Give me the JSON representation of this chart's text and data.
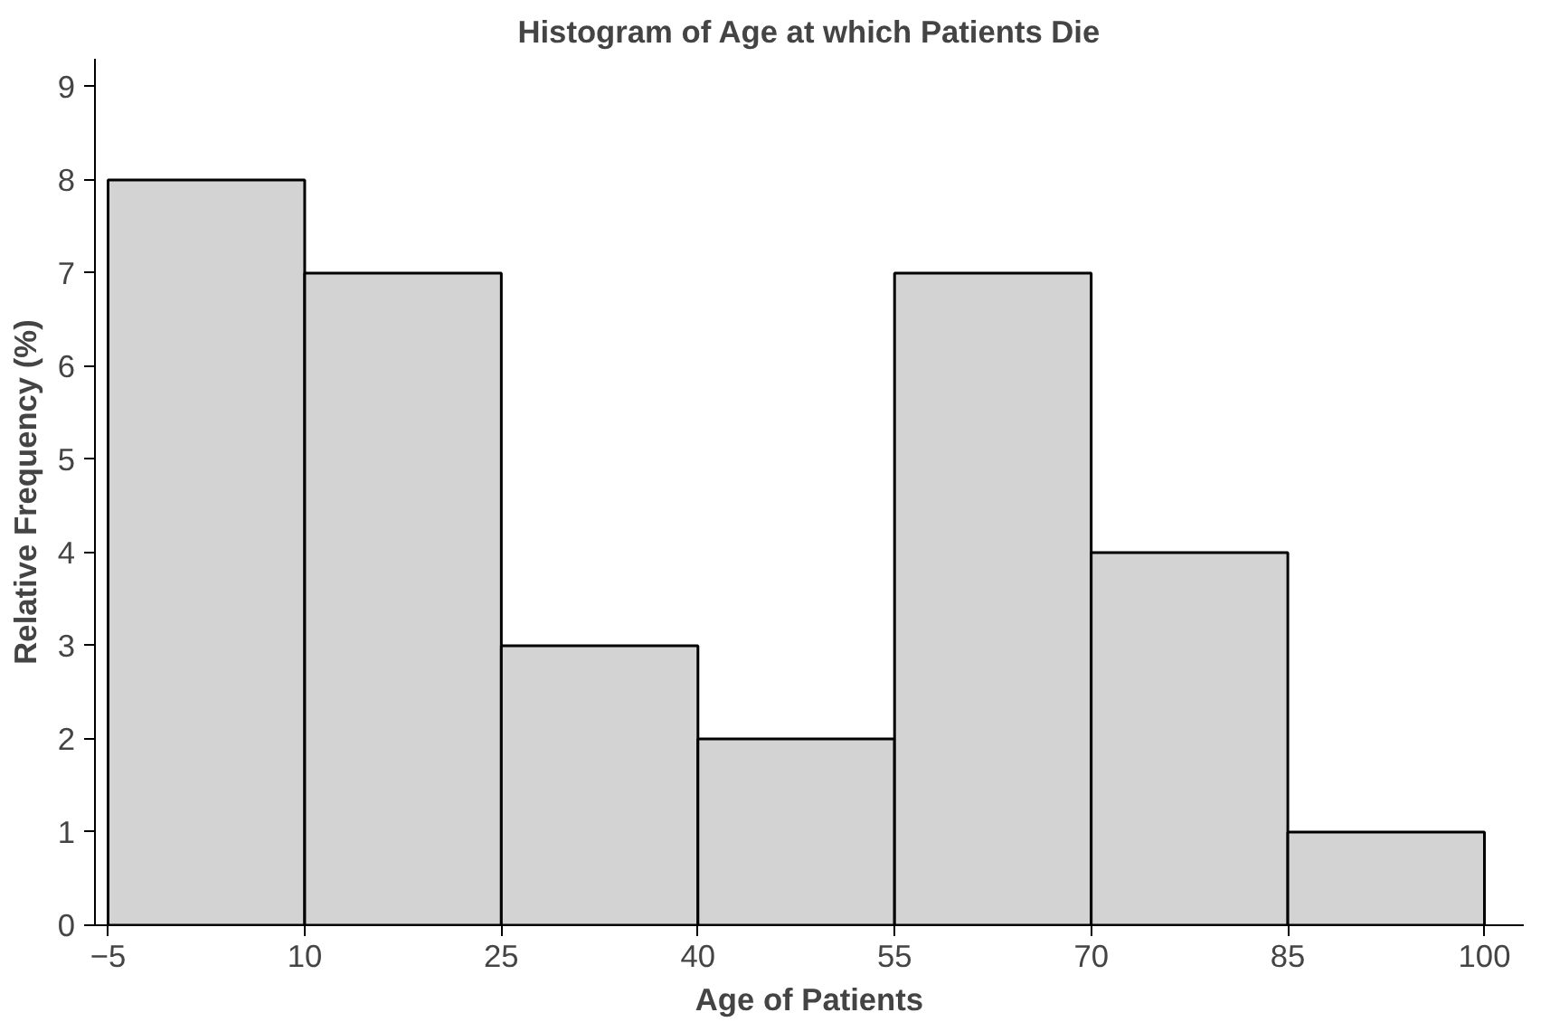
{
  "chart_data": {
    "type": "histogram",
    "title": "Histogram of Age at which Patients Die",
    "xlabel": "Age of Patients",
    "ylabel": "Relative Frequency (%)",
    "bins": [
      -5,
      10,
      25,
      40,
      55,
      70,
      85,
      100
    ],
    "values": [
      8,
      7,
      3,
      2,
      7,
      4,
      1
    ],
    "color": "#d3d3d3",
    "xlim": [
      -6,
      103
    ],
    "xticks": [
      {
        "value": -5,
        "label": "−5"
      },
      10,
      25,
      40,
      55,
      70,
      85,
      100
    ],
    "ylim": [
      0,
      9.3
    ],
    "yticks": [
      0,
      1,
      2,
      3,
      4,
      5,
      6,
      7,
      8,
      9
    ],
    "grid": false
  }
}
